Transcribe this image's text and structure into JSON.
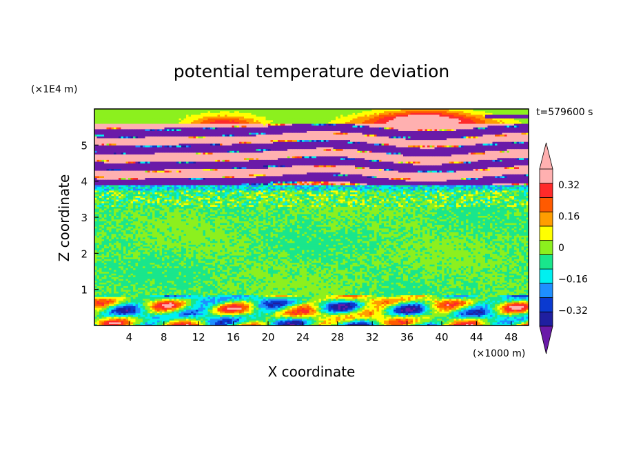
{
  "chart_data": {
    "type": "heatmap",
    "title": "potential temperature deviation",
    "xlabel": "X coordinate",
    "ylabel": "Z coordinate",
    "x_unit": "(×1000 m)",
    "y_unit": "(×1E4 m)",
    "time_label": "t=579600 s",
    "xlim": [
      0,
      50
    ],
    "ylim": [
      0,
      6
    ],
    "x_ticks": [
      4,
      8,
      12,
      16,
      20,
      24,
      28,
      32,
      36,
      40,
      44,
      48
    ],
    "y_ticks": [
      1,
      2,
      3,
      4,
      5
    ],
    "colorbar": {
      "levels": [
        -0.4,
        -0.32,
        -0.24,
        -0.16,
        -0.08,
        0,
        0.08,
        0.16,
        0.24,
        0.32,
        0.4
      ],
      "colors": [
        "#3d1a99",
        "#1f1fa0",
        "#0a3ad0",
        "#1e8fff",
        "#00f0f0",
        "#19e68c",
        "#8cf01e",
        "#ffff00",
        "#ff9d00",
        "#ff5a00",
        "#ff2a2a",
        "#ffb0b0"
      ],
      "under_color": "#6a1aa8",
      "over_color": "#ffb0b0",
      "tick_values": [
        -0.32,
        -0.16,
        0,
        0.16,
        0.32
      ],
      "tick_labels": [
        "−0.32",
        "−0.16",
        "0",
        "0.16",
        "0.32"
      ],
      "extend": "both"
    },
    "bands": [
      {
        "z": [
          0.0,
          0.85
        ],
        "value": "mixed turbulent (−0.3 to 0.4)"
      },
      {
        "z": [
          0.85,
          3.3
        ],
        "value": "−0.04 to 0.04"
      },
      {
        "z": [
          3.3,
          3.9
        ],
        "value": "−0.08 to 0.08"
      },
      {
        "z": [
          3.9,
          5.6
        ],
        "value": "alternating −0.5 / 0.45"
      },
      {
        "z": [
          5.6,
          6.0
        ],
        "value": "0 to 0.4"
      }
    ],
    "grid": false
  }
}
